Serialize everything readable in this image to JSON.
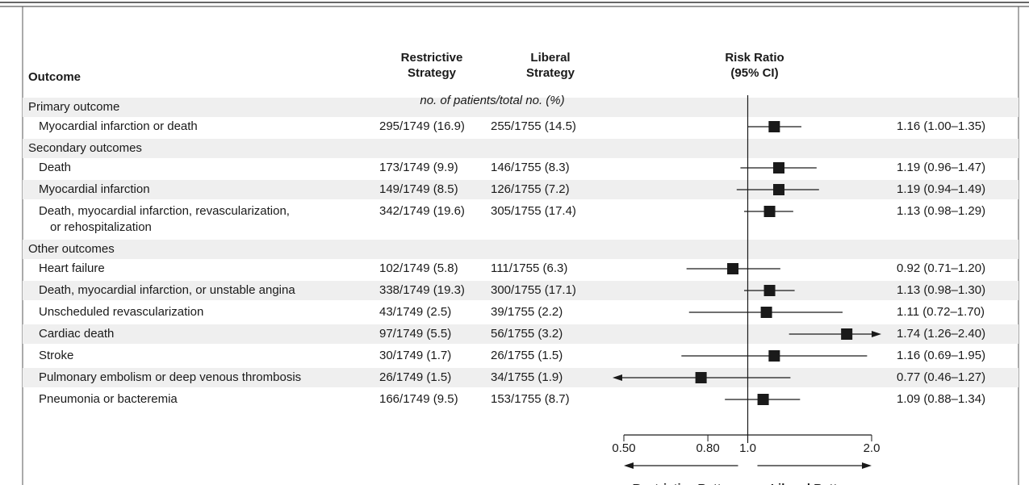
{
  "chart_data": {
    "type": "forest",
    "columns": {
      "outcome": "Outcome",
      "restrictive": [
        "Restrictive",
        "Strategy"
      ],
      "liberal": [
        "Liberal",
        "Strategy"
      ],
      "effect": [
        "Risk Ratio",
        "(95% CI)"
      ]
    },
    "count_note": "no. of patients/total no. (%)",
    "groups": [
      {
        "name": "Primary outcome",
        "rows": [
          {
            "outcome": "Myocardial infarction or death",
            "restrictive": "295/1749 (16.9)",
            "liberal": "255/1755 (14.5)",
            "estimate": 1.16,
            "lower": 1.0,
            "upper": 1.35,
            "ci_label": "1.16 (1.00–1.35)"
          }
        ]
      },
      {
        "name": "Secondary outcomes",
        "rows": [
          {
            "outcome": "Death",
            "restrictive": "173/1749 (9.9)",
            "liberal": "146/1755 (8.3)",
            "estimate": 1.19,
            "lower": 0.96,
            "upper": 1.47,
            "ci_label": "1.19 (0.96–1.47)"
          },
          {
            "outcome": "Myocardial infarction",
            "restrictive": "149/1749 (8.5)",
            "liberal": "126/1755 (7.2)",
            "estimate": 1.19,
            "lower": 0.94,
            "upper": 1.49,
            "ci_label": "1.19 (0.94–1.49)"
          },
          {
            "outcome": [
              "Death, myocardial infarction, revascularization,",
              "or rehospitalization"
            ],
            "restrictive": "342/1749 (19.6)",
            "liberal": "305/1755 (17.4)",
            "estimate": 1.13,
            "lower": 0.98,
            "upper": 1.29,
            "ci_label": "1.13 (0.98–1.29)"
          }
        ]
      },
      {
        "name": "Other outcomes",
        "rows": [
          {
            "outcome": "Heart failure",
            "restrictive": "102/1749 (5.8)",
            "liberal": "111/1755 (6.3)",
            "estimate": 0.92,
            "lower": 0.71,
            "upper": 1.2,
            "ci_label": "0.92 (0.71–1.20)"
          },
          {
            "outcome": "Death, myocardial infarction, or unstable angina",
            "restrictive": "338/1749 (19.3)",
            "liberal": "300/1755 (17.1)",
            "estimate": 1.13,
            "lower": 0.98,
            "upper": 1.3,
            "ci_label": "1.13 (0.98–1.30)"
          },
          {
            "outcome": "Unscheduled revascularization",
            "restrictive": "43/1749 (2.5)",
            "liberal": "39/1755 (2.2)",
            "estimate": 1.11,
            "lower": 0.72,
            "upper": 1.7,
            "ci_label": "1.11 (0.72–1.70)"
          },
          {
            "outcome": "Cardiac death",
            "restrictive": "97/1749 (5.5)",
            "liberal": "56/1755 (3.2)",
            "estimate": 1.74,
            "lower": 1.26,
            "upper": 2.4,
            "ci_label": "1.74 (1.26–2.40)"
          },
          {
            "outcome": "Stroke",
            "restrictive": "30/1749 (1.7)",
            "liberal": "26/1755 (1.5)",
            "estimate": 1.16,
            "lower": 0.69,
            "upper": 1.95,
            "ci_label": "1.16 (0.69–1.95)"
          },
          {
            "outcome": "Pulmonary embolism or deep venous thrombosis",
            "restrictive": "26/1749 (1.5)",
            "liberal": "34/1755 (1.9)",
            "estimate": 0.77,
            "lower": 0.46,
            "upper": 1.27,
            "ci_label": "0.77 (0.46–1.27)"
          },
          {
            "outcome": "Pneumonia or bacteremia",
            "restrictive": "166/1749 (9.5)",
            "liberal": "153/1755 (8.7)",
            "estimate": 1.09,
            "lower": 0.88,
            "upper": 1.34,
            "ci_label": "1.09 (0.88–1.34)"
          }
        ]
      }
    ],
    "xscale": "log",
    "xlim": [
      0.5,
      2.0
    ],
    "xticks": [
      {
        "value": 0.5,
        "label": "0.50"
      },
      {
        "value": 0.8,
        "label": "0.80"
      },
      {
        "value": 1,
        "label": "1.0"
      },
      {
        "value": 2,
        "label": "2.0"
      }
    ],
    "reference": 1,
    "left_direction": "Restrictive Better",
    "right_direction": "Liberal Better",
    "color": "#1a1a1a",
    "shade": "#efefef"
  }
}
